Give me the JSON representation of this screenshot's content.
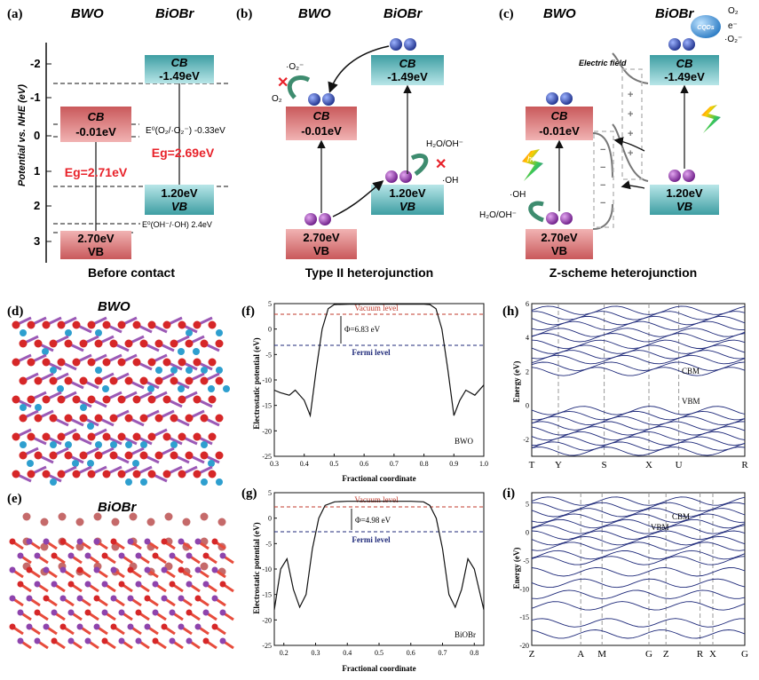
{
  "panels": {
    "a": {
      "label": "(a)",
      "head_left": "BWO",
      "head_right": "BiOBr",
      "axis_label": "Potential vs. NHE (eV)",
      "ticks": [
        "-2",
        "-1",
        "0",
        "1",
        "2",
        "3"
      ],
      "bwo_cb": {
        "line1": "CB",
        "line2": "-0.01eV"
      },
      "bwo_vb": {
        "line1": "2.70eV",
        "line2": "VB"
      },
      "biobr_cb": {
        "line1": "CB",
        "line2": "-1.49eV"
      },
      "biobr_vb": {
        "line1": "1.20eV",
        "line2": "VB"
      },
      "eg_bwo": "Eg=2.71eV",
      "eg_biobr": "Eg=2.69eV",
      "ref_o2": "E⁰(O₂/·O₂⁻) -0.33eV",
      "ref_oh": "E⁰(OH⁻/·OH) 2.4eV",
      "caption": "Before contact"
    },
    "b": {
      "label": "(b)",
      "head_left": "BWO",
      "head_right": "BiOBr",
      "bwo_cb": {
        "line1": "CB",
        "line2": "-0.01eV"
      },
      "bwo_vb": {
        "line1": "2.70eV",
        "line2": "VB"
      },
      "biobr_cb": {
        "line1": "CB",
        "line2": "-1.49eV"
      },
      "biobr_vb": {
        "line1": "1.20eV",
        "line2": "VB"
      },
      "o2_label": "O₂",
      "superoxide": "·O₂⁻",
      "water_label": "H₂O/OH⁻",
      "oh_label": "·OH",
      "caption": "Type II heterojunction"
    },
    "c": {
      "label": "(c)",
      "head_left": "BWO",
      "head_right": "BiOBr",
      "efield": "Electric field",
      "cqds": "CQDs",
      "bwo_cb": {
        "line1": "CB",
        "line2": "-0.01eV"
      },
      "bwo_vb": {
        "line1": "2.70eV",
        "line2": "VB"
      },
      "biobr_cb": {
        "line1": "CB",
        "line2": "-1.49eV"
      },
      "biobr_vb": {
        "line1": "1.20eV",
        "line2": "VB"
      },
      "hv": "hν",
      "o2": "O₂",
      "superoxide": "·O₂⁻",
      "eminus": "e⁻",
      "oh": "·OH",
      "water": "H₂O/OH⁻",
      "caption": "Z-scheme heterojunction"
    },
    "d": {
      "label": "(d)",
      "title": "BWO"
    },
    "e": {
      "label": "(e)",
      "title": "BiOBr"
    },
    "f": {
      "label": "(f)",
      "ylabel": "Electrostatic potential (eV)",
      "xlabel": "Fractional coordinate",
      "vacuum": "Vacuum level",
      "fermi": "Fermi level",
      "phi": "Φ=6.83 eV",
      "tag": "BWO",
      "xticks": [
        "0.3",
        "0.4",
        "0.5",
        "0.6",
        "0.7",
        "0.8",
        "0.9",
        "1.0"
      ],
      "yticks": [
        "5",
        "0",
        "-5",
        "-10",
        "-15",
        "-20",
        "-25"
      ]
    },
    "g": {
      "label": "(g)",
      "ylabel": "Electrostatic potential (eV)",
      "xlabel": "Fractional coordinate",
      "vacuum": "Vacuum level",
      "fermi": "Fermi level",
      "phi": "Φ=4.98 eV",
      "tag": "BiOBr",
      "xticks": [
        "0.2",
        "0.3",
        "0.4",
        "0.5",
        "0.6",
        "0.7",
        "0.8"
      ],
      "yticks": [
        "5",
        "0",
        "-5",
        "-10",
        "-15",
        "-20",
        "-25"
      ]
    },
    "h": {
      "label": "(h)",
      "ylabel": "Energy (eV)",
      "kpoints": [
        "T",
        "Y",
        "S",
        "X",
        "U",
        "R"
      ],
      "yticks": [
        "6",
        "4",
        "2",
        "0",
        "-2"
      ],
      "cbm": "CBM",
      "vbm": "VBM"
    },
    "i": {
      "label": "(i)",
      "ylabel": "Energy (eV)",
      "kpoints": [
        "Z",
        "A",
        "M",
        "G",
        "Z",
        "R",
        "X",
        "G"
      ],
      "yticks": [
        "5",
        "0",
        "-5",
        "-10",
        "-15",
        "-20"
      ],
      "cbm": "CBM",
      "vbm": "VBM"
    }
  },
  "chart_data": [
    {
      "type": "line",
      "panel": "f",
      "xlabel": "Fractional coordinate",
      "ylabel": "Electrostatic potential (eV)",
      "xlim": [
        0.3,
        1.0
      ],
      "ylim": [
        -25,
        5
      ],
      "series": [
        {
          "x": [
            0.3,
            0.32,
            0.35,
            0.37,
            0.4,
            0.42,
            0.44,
            0.46,
            0.48,
            0.5,
            0.55,
            0.6,
            0.7,
            0.8,
            0.82,
            0.84,
            0.86,
            0.88,
            0.9,
            0.92,
            0.94,
            0.97,
            1.0
          ],
          "y": [
            -12,
            -12.5,
            -13,
            -12,
            -14,
            -17,
            -8,
            0,
            4,
            4.8,
            4.9,
            4.9,
            4.9,
            4.9,
            4.8,
            4,
            0,
            -8,
            -17,
            -14,
            -12,
            -13,
            -11
          ]
        }
      ],
      "vacuum_level": 4.83,
      "fermi_level": -2.0
    },
    {
      "type": "line",
      "panel": "g",
      "xlabel": "Fractional coordinate",
      "ylabel": "Electrostatic potential (eV)",
      "xlim": [
        0.17,
        0.83
      ],
      "ylim": [
        -25,
        5
      ],
      "series": [
        {
          "x": [
            0.17,
            0.19,
            0.21,
            0.23,
            0.25,
            0.27,
            0.29,
            0.31,
            0.33,
            0.36,
            0.4,
            0.5,
            0.6,
            0.64,
            0.66,
            0.68,
            0.7,
            0.72,
            0.74,
            0.76,
            0.78,
            0.8,
            0.83
          ],
          "y": [
            -18,
            -10,
            -8,
            -14,
            -17.5,
            -15,
            -6,
            0,
            2.5,
            3.2,
            3.3,
            3.3,
            3.3,
            3.2,
            2.5,
            0,
            -6,
            -15,
            -17.5,
            -14,
            -8,
            -10,
            -18
          ]
        }
      ],
      "vacuum_level": 3.48,
      "fermi_level": -1.5
    }
  ]
}
